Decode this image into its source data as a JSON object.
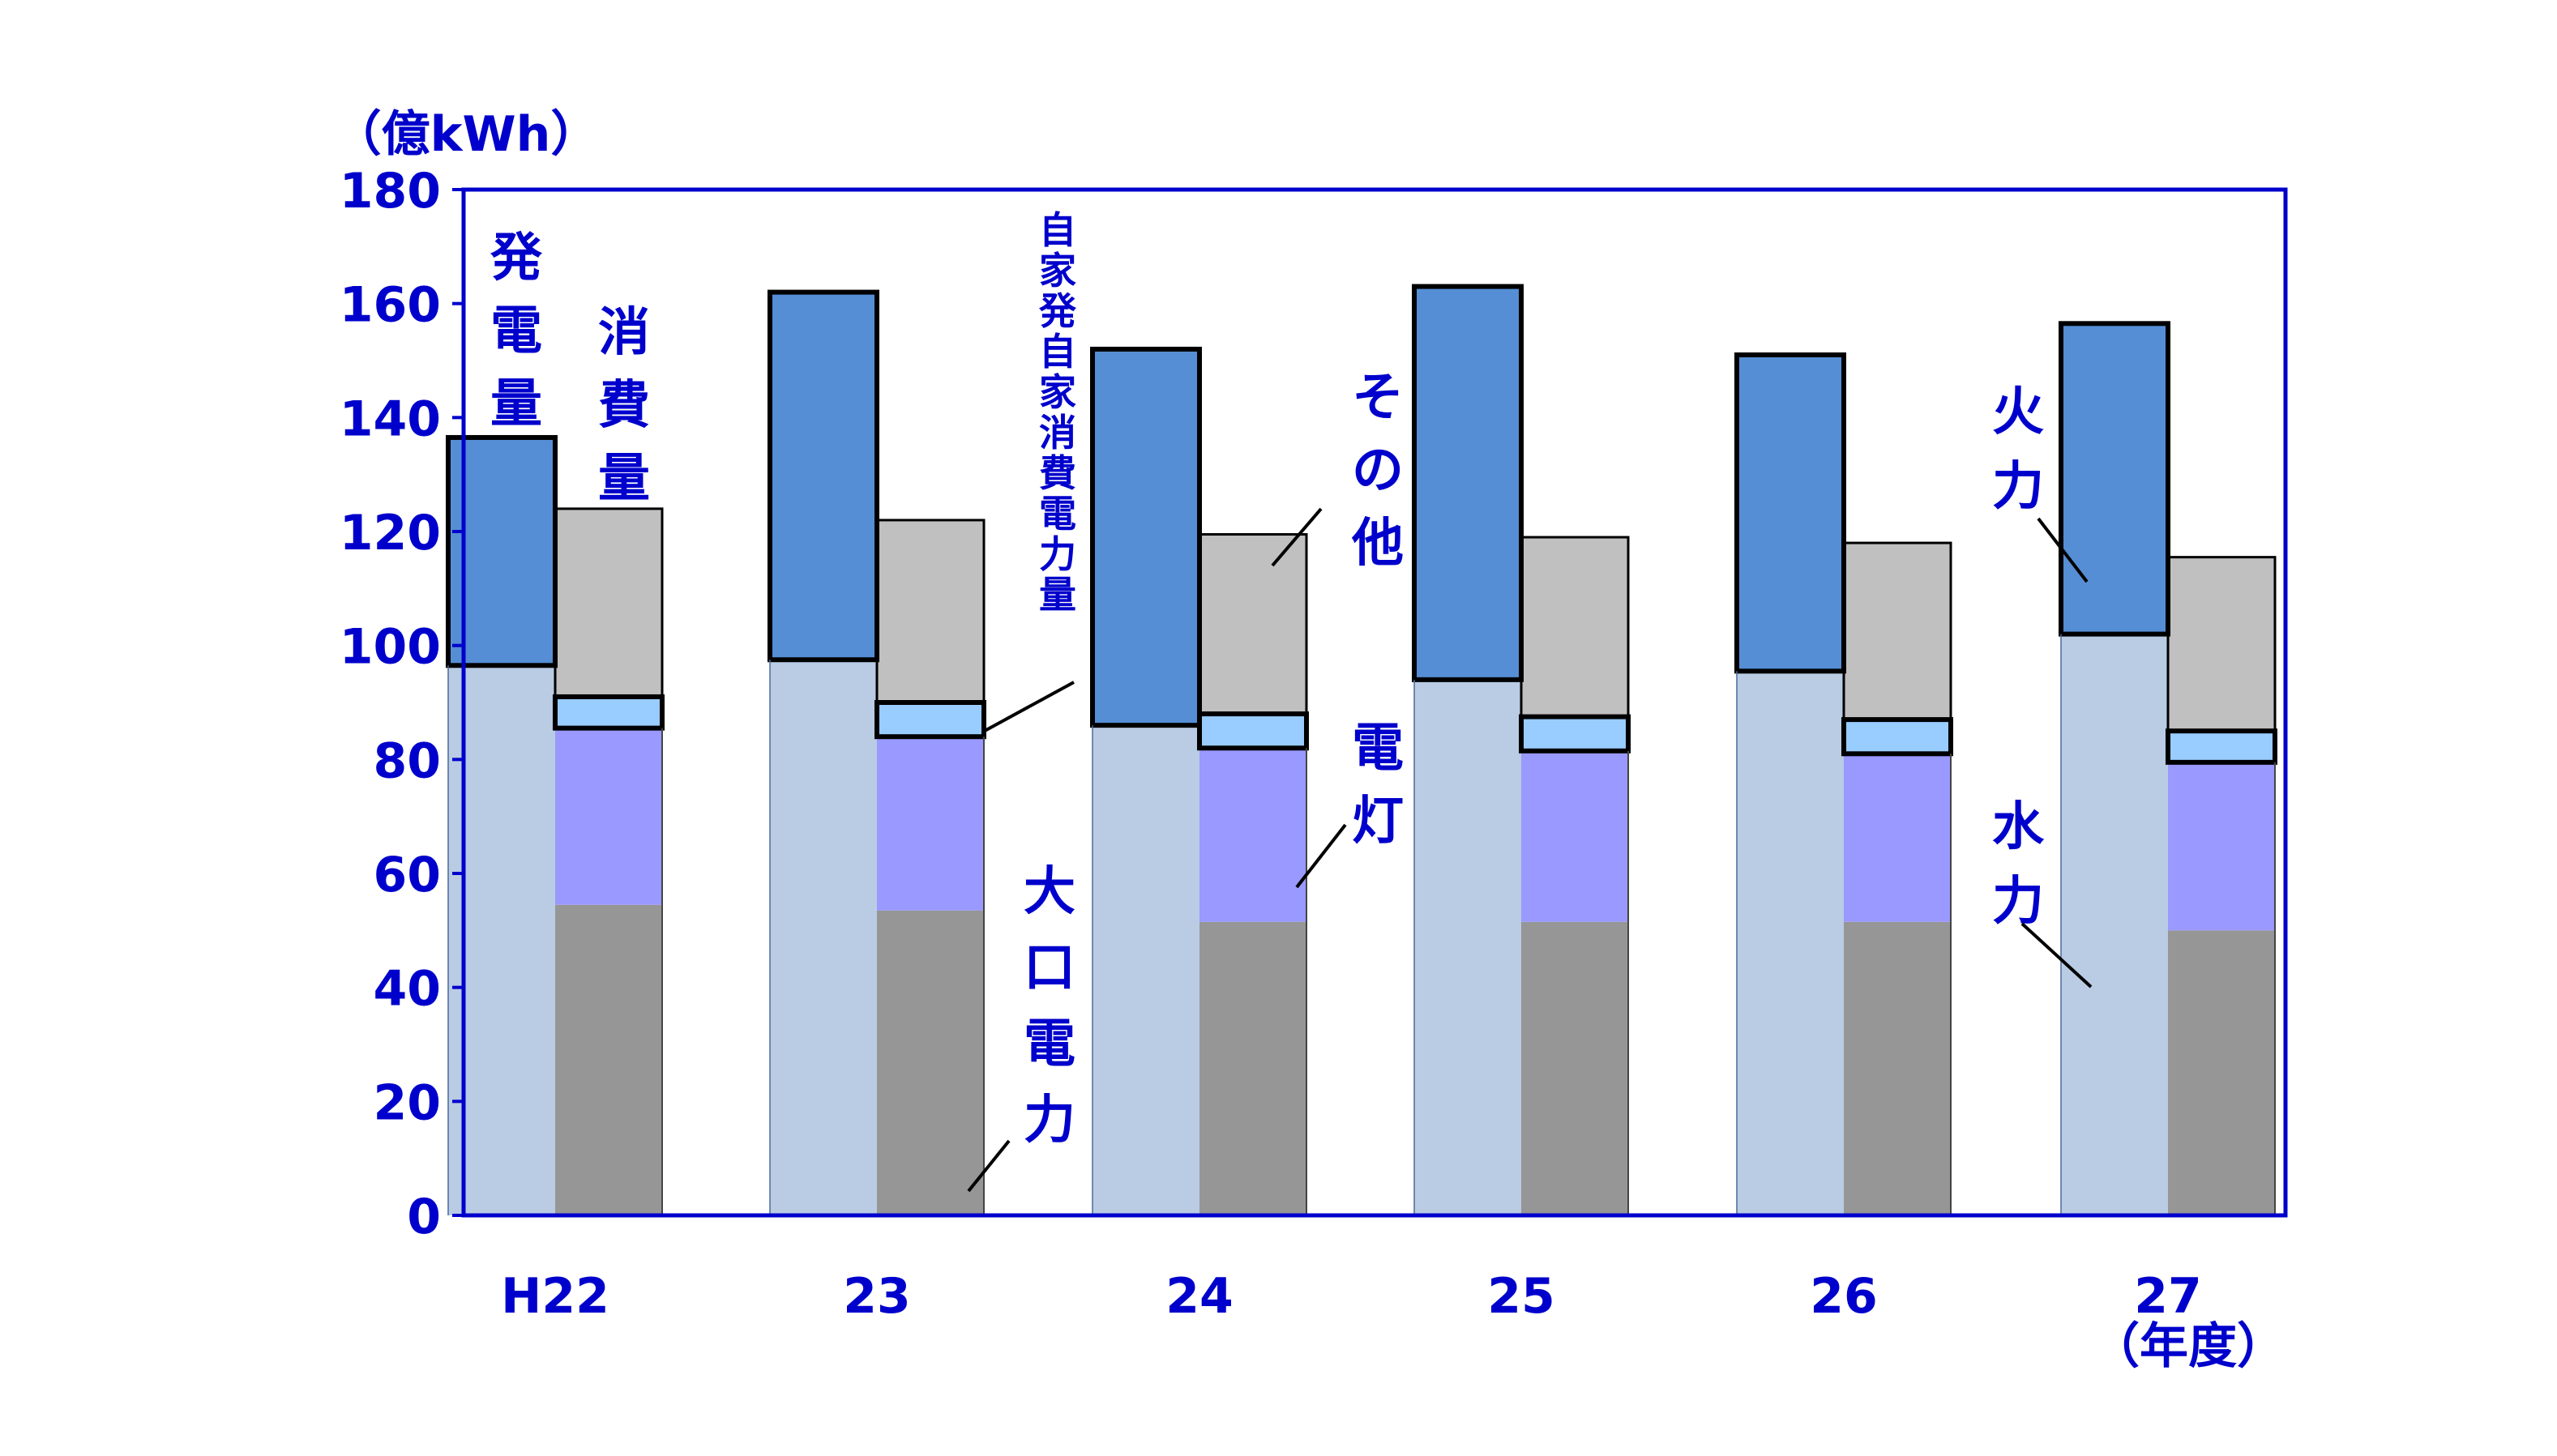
{
  "chart_data": {
    "type": "bar",
    "unit_label": "（億kWh）",
    "xlabel": "（年度）",
    "ylim": [
      0,
      180
    ],
    "yticks": [
      "0",
      "20",
      "40",
      "60",
      "80",
      "100",
      "120",
      "140",
      "160",
      "180"
    ],
    "categories": [
      "H22",
      "23",
      "24",
      "25",
      "26",
      "27"
    ],
    "stacks": [
      {
        "label": "発電量",
        "series": [
          {
            "name": "水力",
            "values": [
              96.5,
              97.5,
              86,
              94,
              95.5,
              102
            ]
          },
          {
            "name": "火力",
            "values": [
              40,
              64.5,
              66,
              69,
              55.5,
              54.5
            ]
          }
        ]
      },
      {
        "label": "消費量",
        "series": [
          {
            "name": "大口電力",
            "values": [
              54.5,
              53.5,
              51.5,
              51.5,
              51.5,
              50
            ]
          },
          {
            "name": "電灯",
            "values": [
              31,
              30.5,
              30.5,
              30,
              29.5,
              29.5
            ]
          },
          {
            "name": "自家発自家消費電力量",
            "values": [
              5.5,
              6,
              6,
              6,
              6,
              5.5
            ]
          },
          {
            "name": "その他",
            "values": [
              33,
              32,
              31.5,
              31.5,
              31,
              30.5
            ]
          }
        ]
      }
    ],
    "annotations": [
      {
        "text": "発電量"
      },
      {
        "text": "消費量"
      },
      {
        "text": "自家発自家消費電力量"
      },
      {
        "text": "その他"
      },
      {
        "text": "電灯"
      },
      {
        "text": "大口電力"
      },
      {
        "text": "火力"
      },
      {
        "text": "水力"
      }
    ],
    "colors": {
      "水力": "#b9cce4",
      "火力": "#558ed5",
      "大口電力": "#969696",
      "電灯": "#9999ff",
      "自家発自家消費電力量": "#99ccff",
      "その他": "#c0c0c0",
      "axis": "#0000cc",
      "text": "#0000cc"
    }
  }
}
